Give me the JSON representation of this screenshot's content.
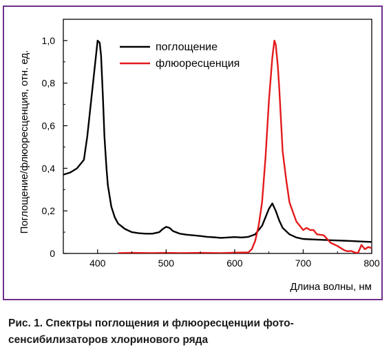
{
  "caption": "Рис. 1. Спектры поглощения и флюоресценции фото-сенсибилизаторов хлоринового ряда",
  "chart_data": {
    "type": "line",
    "xlabel": "Длина волны, нм",
    "ylabel": "Поглощение/флюоресценция, отн. ед.",
    "xlim": [
      350,
      800
    ],
    "ylim": [
      0,
      1.1
    ],
    "x_ticks": [
      400,
      500,
      600,
      700,
      800
    ],
    "y_ticks": [
      0,
      0.2,
      0.4,
      0.6,
      0.8,
      1.0
    ],
    "y_tick_labels": [
      "0",
      "0,2",
      "0,4",
      "0,6",
      "0,8",
      "1,0"
    ],
    "grid": false,
    "legend_position": "top-center",
    "series": [
      {
        "name": "поглощение",
        "color": "#000000",
        "x": [
          350,
          360,
          370,
          380,
          385,
          390,
          395,
          400,
          403,
          405,
          408,
          410,
          413,
          415,
          420,
          425,
          430,
          440,
          450,
          460,
          470,
          480,
          490,
          495,
          500,
          505,
          510,
          520,
          530,
          540,
          550,
          560,
          570,
          580,
          590,
          600,
          610,
          620,
          630,
          640,
          645,
          650,
          655,
          660,
          665,
          670,
          680,
          690,
          700,
          720,
          740,
          760,
          780,
          800
        ],
        "y": [
          0.37,
          0.38,
          0.4,
          0.44,
          0.55,
          0.7,
          0.85,
          1.0,
          0.99,
          0.93,
          0.72,
          0.55,
          0.4,
          0.32,
          0.22,
          0.17,
          0.14,
          0.115,
          0.1,
          0.095,
          0.093,
          0.093,
          0.1,
          0.115,
          0.125,
          0.12,
          0.105,
          0.093,
          0.088,
          0.085,
          0.082,
          0.078,
          0.076,
          0.073,
          0.075,
          0.077,
          0.075,
          0.078,
          0.09,
          0.13,
          0.17,
          0.21,
          0.235,
          0.2,
          0.155,
          0.12,
          0.09,
          0.075,
          0.068,
          0.065,
          0.062,
          0.06,
          0.057,
          0.054
        ]
      },
      {
        "name": "флюоресценция",
        "color": "#e3191b",
        "x": [
          430,
          450,
          480,
          500,
          520,
          550,
          580,
          600,
          620,
          625,
          630,
          635,
          640,
          645,
          650,
          655,
          658,
          660,
          663,
          665,
          668,
          670,
          675,
          680,
          690,
          700,
          705,
          710,
          715,
          720,
          730,
          740,
          750,
          760,
          765,
          770,
          775,
          780,
          785,
          790,
          795,
          800
        ],
        "y": [
          0.002,
          0.003,
          0.002,
          0.003,
          0.002,
          0.003,
          0.002,
          0.004,
          0.005,
          0.02,
          0.06,
          0.13,
          0.24,
          0.45,
          0.72,
          0.92,
          1.0,
          0.98,
          0.88,
          0.78,
          0.6,
          0.48,
          0.35,
          0.24,
          0.15,
          0.11,
          0.12,
          0.11,
          0.11,
          0.09,
          0.085,
          0.05,
          0.035,
          0.015,
          0.01,
          0.012,
          0.005,
          0.002,
          0.04,
          0.02,
          0.03,
          0.025
        ]
      }
    ]
  }
}
